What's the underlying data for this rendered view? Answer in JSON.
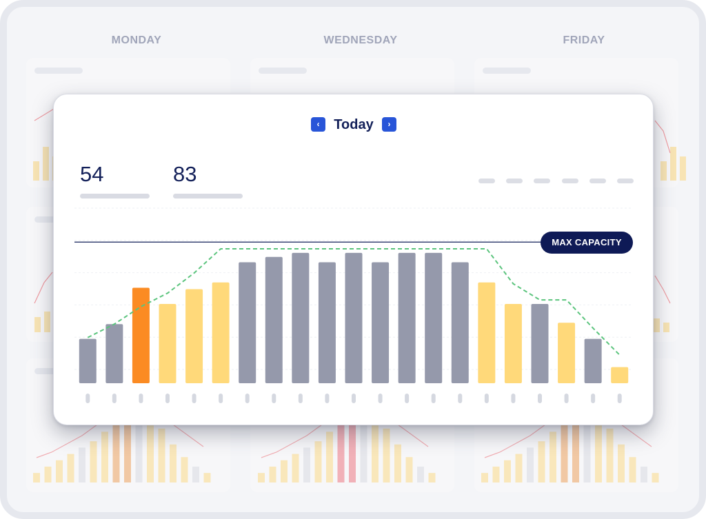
{
  "background": {
    "days": [
      "MONDAY",
      "WEDNESDAY",
      "FRIDAY"
    ]
  },
  "card": {
    "nav": {
      "title": "Today",
      "prev_icon": "chevron-left-icon",
      "next_icon": "chevron-right-icon",
      "prev_glyph": "‹",
      "next_glyph": "›"
    },
    "stats": [
      "54",
      "83"
    ]
  },
  "colors": {
    "gray": "#9599ab",
    "yellow": "#ffd97a",
    "orange": "#fb8b23",
    "dashed_line": "#5bc47d",
    "capacity_line": "#132059",
    "accent": "#2855d8"
  },
  "chart_data": {
    "type": "bar",
    "title": "Today",
    "categories": [
      "",
      "",
      "",
      "",
      "",
      "",
      "",
      "",
      "",
      "",
      "",
      "",
      "",
      "",
      "",
      "",
      "",
      "",
      "",
      "",
      ""
    ],
    "values": [
      33,
      44,
      71,
      59,
      70,
      75,
      90,
      94,
      97,
      90,
      97,
      90,
      97,
      97,
      90,
      75,
      59,
      59,
      45,
      33,
      12
    ],
    "bar_colors": [
      "gray",
      "gray",
      "orange",
      "yellow",
      "yellow",
      "yellow",
      "gray",
      "gray",
      "gray",
      "gray",
      "gray",
      "gray",
      "gray",
      "gray",
      "gray",
      "yellow",
      "yellow",
      "gray",
      "yellow",
      "gray",
      "yellow"
    ],
    "trend_line": [
      34,
      44,
      57,
      67,
      82,
      100,
      100,
      100,
      100,
      100,
      100,
      100,
      100,
      100,
      100,
      100,
      74,
      62,
      62,
      41,
      21
    ],
    "max_capacity": {
      "value": 105,
      "label": "MAX CAPACITY"
    },
    "ylim": [
      0,
      120
    ],
    "grid": true,
    "xlabel": "",
    "ylabel": ""
  }
}
